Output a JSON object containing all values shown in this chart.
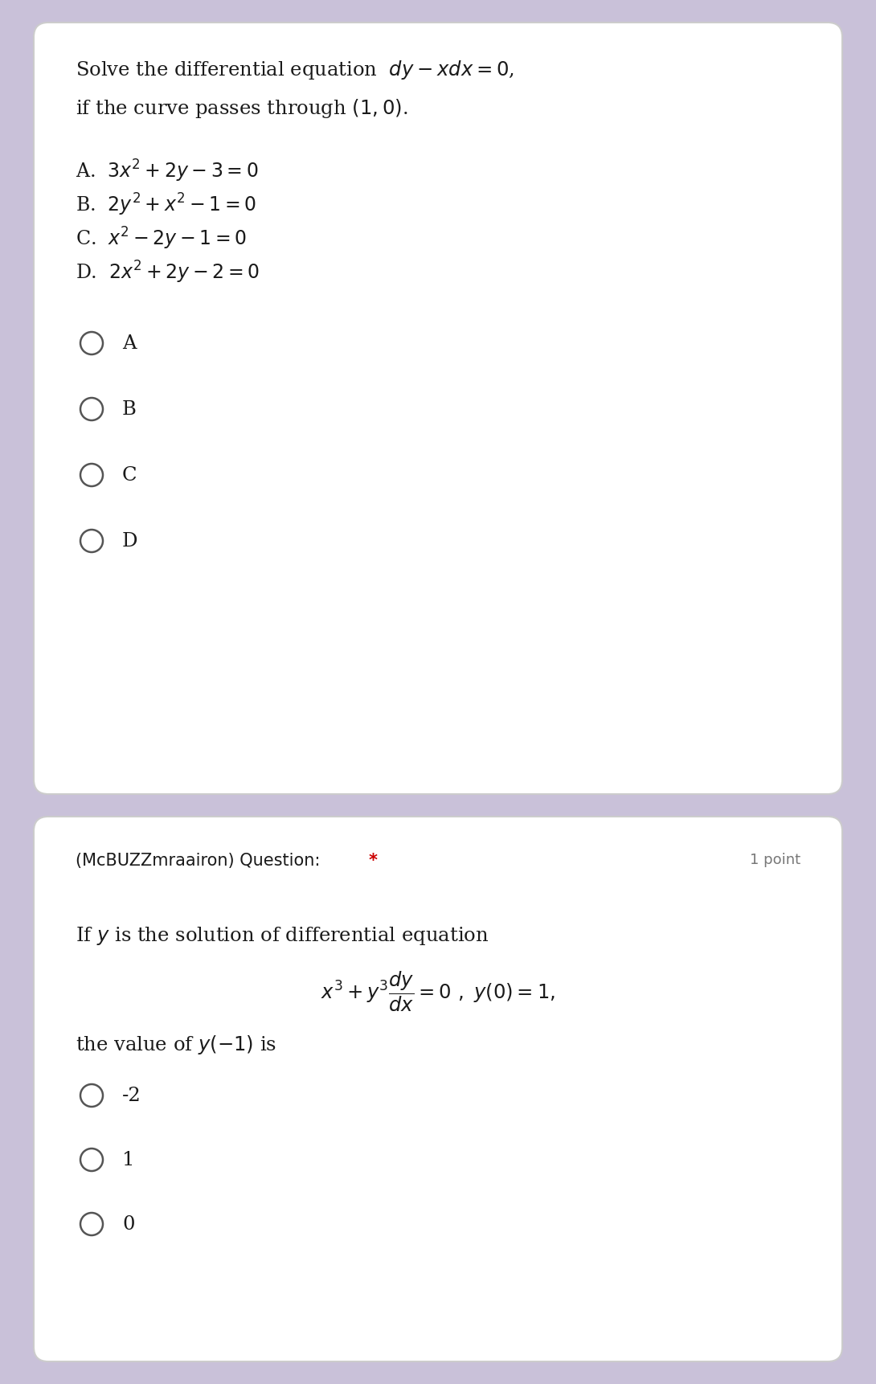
{
  "bg_color": "#c9c1d9",
  "card1_color": "#ffffff",
  "card2_color": "#ffffff",
  "text_color": "#1a1a1a",
  "radio_color": "#555555",
  "star_color": "#cc0000",
  "points_color": "#777777",
  "q1_line1": "Solve the differential equation  $dy - xdx = 0$,",
  "q1_line2": "if the curve passes through $(1,0)$.",
  "q1_options": [
    "A.  $3x^2 + 2y - 3 = 0$",
    "B.  $2y^2 + x^2 - 1 = 0$",
    "C.  $x^2 - 2y - 1 = 0$",
    "D.  $2x^2 + 2y - 2 = 0$"
  ],
  "q1_radios": [
    "A",
    "B",
    "C",
    "D"
  ],
  "q2_header": "(McBUZZmraairon) Question:",
  "q2_star": "*",
  "q2_points": "1 point",
  "q2_line1": "If $y$ is the solution of differential equation",
  "q2_eq": "$x^3 + y^3 \\dfrac{dy}{dx} = 0\\ ,\\ y(0) = 1,$",
  "q2_line2": "the value of $y(-1)$ is",
  "q2_radios": [
    "-2",
    "1",
    "0"
  ],
  "fig_w": 10.9,
  "fig_h": 17.22,
  "dpi": 100
}
